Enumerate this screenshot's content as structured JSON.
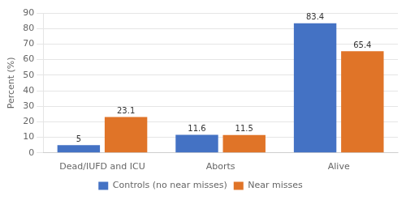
{
  "chart_data": {
    "type": "bar",
    "categories": [
      "Dead/IUFD and ICU",
      "Aborts",
      "Alive"
    ],
    "series": [
      {
        "name": "Controls (no near misses)",
        "color": "#4472C4",
        "values": [
          5,
          11.6,
          83.4
        ]
      },
      {
        "name": "Near misses",
        "color": "#E07428",
        "values": [
          23.1,
          11.5,
          65.4
        ]
      }
    ],
    "ylabel": "Percent (%)",
    "ylim": [
      0,
      90
    ],
    "yticks": [
      0,
      10,
      20,
      30,
      40,
      50,
      60,
      70,
      80,
      90
    ],
    "grid": true,
    "legend": "bottom",
    "data_labels": true
  }
}
